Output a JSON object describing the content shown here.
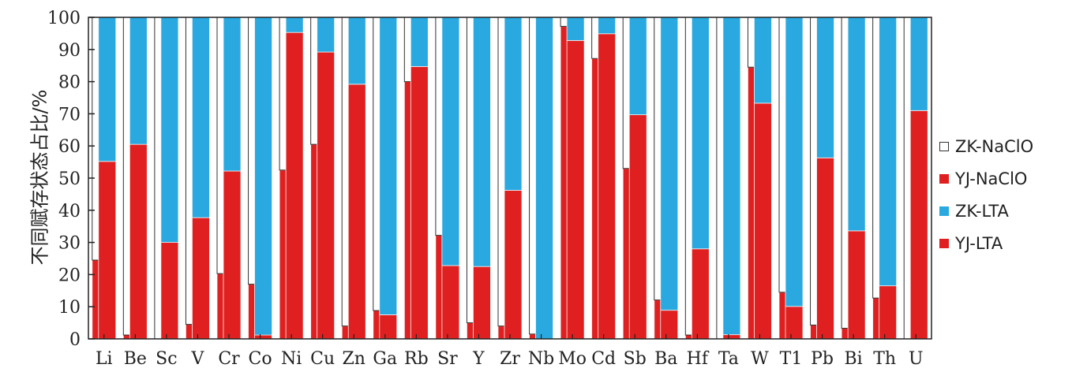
{
  "chart_data": {
    "type": "bar",
    "stacked": true,
    "ylabel": "不同赋存状态占比/%",
    "xlabel": "",
    "ylim": [
      0,
      100
    ],
    "yticks": [
      0,
      10,
      20,
      30,
      40,
      50,
      60,
      70,
      80,
      90,
      100
    ],
    "grid": false,
    "legend_position": "right",
    "categories": [
      "Li",
      "Be",
      "Sc",
      "V",
      "Cr",
      "Co",
      "Ni",
      "Cu",
      "Zn",
      "Ga",
      "Rb",
      "Sr",
      "Y",
      "Zr",
      "Nb",
      "Mo",
      "Cd",
      "Sb",
      "Ba",
      "Hf",
      "Ta",
      "W",
      "T1",
      "Pb",
      "Bi",
      "Th",
      "U"
    ],
    "groups": [
      {
        "label": "NaClO",
        "series": [
          {
            "name": "YJ-NaClO",
            "color": "#e02020",
            "values": [
              24.5,
              1.2,
              0,
              4.5,
              20.3,
              17,
              52.5,
              60.5,
              4,
              8.8,
              80,
              32.2,
              5,
              4,
              1.5,
              97.2,
              87.2,
              53,
              12.1,
              1.2,
              0,
              84.5,
              14.5,
              4.3,
              3.3,
              12.7,
              0
            ]
          },
          {
            "name": "ZK-NaClO",
            "color": "#ffffff",
            "values": [
              75.5,
              98.8,
              100,
              95.5,
              79.7,
              83,
              47.5,
              39.5,
              96,
              91.2,
              20,
              67.8,
              95,
              96,
              98.5,
              2.8,
              12.8,
              47,
              87.9,
              98.8,
              100,
              15.5,
              85.5,
              95.7,
              96.7,
              87.3,
              100
            ]
          }
        ]
      },
      {
        "label": "LTA",
        "series": [
          {
            "name": "YJ-LTA",
            "color": "#e02020",
            "values": [
              55.2,
              60.5,
              30,
              37.7,
              52.2,
              1.2,
              95.3,
              89.2,
              79.2,
              7.5,
              84.7,
              22.8,
              22.5,
              46.2,
              0,
              92.8,
              94.9,
              69.7,
              8.9,
              28,
              1.3,
              73.3,
              10.1,
              56.3,
              33.6,
              16.5,
              71
            ]
          },
          {
            "name": "ZK-LTA",
            "color": "#29a9e0",
            "values": [
              44.8,
              39.5,
              70,
              62.3,
              47.8,
              98.8,
              4.7,
              10.8,
              20.8,
              92.5,
              15.3,
              77.2,
              77.5,
              53.8,
              100,
              7.2,
              5.1,
              30.3,
              91.1,
              72,
              98.7,
              26.7,
              89.9,
              43.7,
              66.4,
              83.5,
              29
            ]
          }
        ]
      }
    ],
    "legend": [
      {
        "name": "ZK-NaClO",
        "color": "#ffffff"
      },
      {
        "name": "YJ-NaClO",
        "color": "#e02020"
      },
      {
        "name": "ZK-LTA",
        "color": "#29a9e0"
      },
      {
        "name": "YJ-LTA",
        "color": "#e02020"
      }
    ]
  }
}
